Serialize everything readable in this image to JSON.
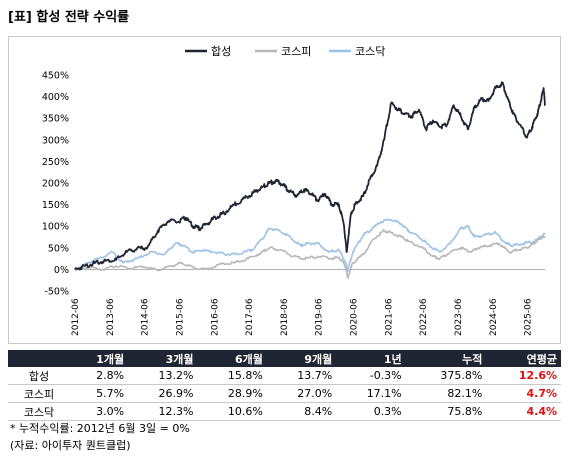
{
  "title": "[표] 합성 전략 수익률",
  "chart_data": {
    "type": "line",
    "title": "",
    "ylim": [
      -50,
      450
    ],
    "yticks": [
      "-50%",
      "0%",
      "50%",
      "100%",
      "150%",
      "200%",
      "250%",
      "300%",
      "350%",
      "400%",
      "450%"
    ],
    "ytick_values": [
      -50,
      0,
      50,
      100,
      150,
      200,
      250,
      300,
      350,
      400,
      450
    ],
    "xticks": [
      "2012-06",
      "2013-06",
      "2014-06",
      "2015-06",
      "2016-06",
      "2017-06",
      "2018-06",
      "2019-06",
      "2020-06",
      "2021-06",
      "2022-06",
      "2023-06",
      "2024-06",
      "2025-06"
    ],
    "x_start": 2012.42,
    "x_end": 2025.92,
    "grid": false,
    "legend_position": "top-center",
    "series": [
      {
        "name": "합성",
        "color": "#1f2533",
        "points": [
          [
            2012.42,
            0
          ],
          [
            2012.7,
            8
          ],
          [
            2013.0,
            15
          ],
          [
            2013.3,
            20
          ],
          [
            2013.6,
            22
          ],
          [
            2013.9,
            40
          ],
          [
            2014.2,
            48
          ],
          [
            2014.5,
            50
          ],
          [
            2014.8,
            90
          ],
          [
            2015.1,
            112
          ],
          [
            2015.4,
            110
          ],
          [
            2015.6,
            120
          ],
          [
            2015.8,
            100
          ],
          [
            2016.0,
            95
          ],
          [
            2016.2,
            105
          ],
          [
            2016.45,
            120
          ],
          [
            2016.7,
            130
          ],
          [
            2017.0,
            150
          ],
          [
            2017.3,
            165
          ],
          [
            2017.6,
            180
          ],
          [
            2017.8,
            190
          ],
          [
            2018.0,
            200
          ],
          [
            2018.2,
            205
          ],
          [
            2018.4,
            195
          ],
          [
            2018.6,
            180
          ],
          [
            2018.8,
            170
          ],
          [
            2019.0,
            185
          ],
          [
            2019.2,
            175
          ],
          [
            2019.4,
            160
          ],
          [
            2019.6,
            175
          ],
          [
            2019.8,
            150
          ],
          [
            2020.0,
            150
          ],
          [
            2020.15,
            100
          ],
          [
            2020.22,
            40
          ],
          [
            2020.35,
            130
          ],
          [
            2020.5,
            155
          ],
          [
            2020.7,
            170
          ],
          [
            2020.9,
            210
          ],
          [
            2021.1,
            240
          ],
          [
            2021.3,
            300
          ],
          [
            2021.5,
            385
          ],
          [
            2021.7,
            370
          ],
          [
            2021.9,
            360
          ],
          [
            2022.1,
            355
          ],
          [
            2022.3,
            370
          ],
          [
            2022.5,
            325
          ],
          [
            2022.7,
            345
          ],
          [
            2022.9,
            330
          ],
          [
            2023.1,
            335
          ],
          [
            2023.3,
            380
          ],
          [
            2023.5,
            355
          ],
          [
            2023.7,
            325
          ],
          [
            2023.9,
            375
          ],
          [
            2024.1,
            395
          ],
          [
            2024.3,
            390
          ],
          [
            2024.5,
            420
          ],
          [
            2024.7,
            430
          ],
          [
            2024.85,
            395
          ],
          [
            2025.0,
            360
          ],
          [
            2025.2,
            335
          ],
          [
            2025.4,
            305
          ],
          [
            2025.55,
            330
          ],
          [
            2025.7,
            360
          ],
          [
            2025.8,
            390
          ],
          [
            2025.88,
            420
          ],
          [
            2025.92,
            380
          ]
        ]
      },
      {
        "name": "코스피",
        "color": "#b8b8b8",
        "points": [
          [
            2012.42,
            0
          ],
          [
            2012.8,
            5
          ],
          [
            2013.2,
            0
          ],
          [
            2013.6,
            8
          ],
          [
            2014.0,
            2
          ],
          [
            2014.4,
            6
          ],
          [
            2014.8,
            -2
          ],
          [
            2015.2,
            8
          ],
          [
            2015.5,
            15
          ],
          [
            2015.8,
            5
          ],
          [
            2016.2,
            0
          ],
          [
            2016.6,
            12
          ],
          [
            2017.0,
            15
          ],
          [
            2017.4,
            25
          ],
          [
            2017.8,
            40
          ],
          [
            2018.0,
            50
          ],
          [
            2018.3,
            45
          ],
          [
            2018.7,
            30
          ],
          [
            2019.0,
            25
          ],
          [
            2019.4,
            30
          ],
          [
            2019.8,
            25
          ],
          [
            2020.0,
            28
          ],
          [
            2020.2,
            5
          ],
          [
            2020.25,
            -20
          ],
          [
            2020.4,
            15
          ],
          [
            2020.7,
            35
          ],
          [
            2021.0,
            70
          ],
          [
            2021.3,
            90
          ],
          [
            2021.5,
            85
          ],
          [
            2021.8,
            75
          ],
          [
            2022.0,
            65
          ],
          [
            2022.4,
            50
          ],
          [
            2022.7,
            30
          ],
          [
            2022.9,
            25
          ],
          [
            2023.2,
            40
          ],
          [
            2023.5,
            50
          ],
          [
            2023.8,
            40
          ],
          [
            2024.0,
            50
          ],
          [
            2024.3,
            55
          ],
          [
            2024.6,
            60
          ],
          [
            2024.9,
            40
          ],
          [
            2025.1,
            45
          ],
          [
            2025.4,
            50
          ],
          [
            2025.6,
            60
          ],
          [
            2025.8,
            75
          ],
          [
            2025.92,
            82
          ]
        ]
      },
      {
        "name": "코스닥",
        "color": "#9ec3e6",
        "points": [
          [
            2012.42,
            0
          ],
          [
            2012.8,
            15
          ],
          [
            2013.1,
            25
          ],
          [
            2013.5,
            40
          ],
          [
            2013.8,
            15
          ],
          [
            2014.2,
            25
          ],
          [
            2014.6,
            40
          ],
          [
            2015.0,
            35
          ],
          [
            2015.3,
            60
          ],
          [
            2015.55,
            55
          ],
          [
            2015.8,
            40
          ],
          [
            2016.1,
            45
          ],
          [
            2016.4,
            40
          ],
          [
            2016.8,
            35
          ],
          [
            2017.1,
            35
          ],
          [
            2017.5,
            45
          ],
          [
            2017.8,
            70
          ],
          [
            2018.0,
            95
          ],
          [
            2018.3,
            90
          ],
          [
            2018.6,
            75
          ],
          [
            2018.9,
            55
          ],
          [
            2019.1,
            60
          ],
          [
            2019.4,
            60
          ],
          [
            2019.7,
            40
          ],
          [
            2020.0,
            45
          ],
          [
            2020.2,
            15
          ],
          [
            2020.25,
            -5
          ],
          [
            2020.4,
            40
          ],
          [
            2020.7,
            80
          ],
          [
            2020.9,
            90
          ],
          [
            2021.2,
            110
          ],
          [
            2021.5,
            115
          ],
          [
            2021.8,
            105
          ],
          [
            2022.0,
            90
          ],
          [
            2022.3,
            75
          ],
          [
            2022.6,
            55
          ],
          [
            2022.9,
            40
          ],
          [
            2023.2,
            60
          ],
          [
            2023.5,
            95
          ],
          [
            2023.7,
            100
          ],
          [
            2023.9,
            75
          ],
          [
            2024.2,
            80
          ],
          [
            2024.5,
            85
          ],
          [
            2024.8,
            60
          ],
          [
            2025.0,
            55
          ],
          [
            2025.3,
            60
          ],
          [
            2025.6,
            65
          ],
          [
            2025.8,
            72
          ],
          [
            2025.92,
            76
          ]
        ]
      }
    ]
  },
  "table": {
    "headers": [
      "",
      "1개월",
      "3개월",
      "6개월",
      "9개월",
      "1년",
      "누적",
      "연평균"
    ],
    "rows": [
      {
        "name": "합성",
        "values": [
          "2.8%",
          "13.2%",
          "15.8%",
          "13.7%",
          "-0.3%",
          "375.8%"
        ],
        "cagr": "12.6%"
      },
      {
        "name": "코스피",
        "values": [
          "5.7%",
          "26.9%",
          "28.9%",
          "27.0%",
          "17.1%",
          "82.1%"
        ],
        "cagr": "4.7%"
      },
      {
        "name": "코스닥",
        "values": [
          "3.0%",
          "12.3%",
          "10.6%",
          "8.4%",
          "0.3%",
          "75.8%"
        ],
        "cagr": "4.4%"
      }
    ],
    "highlight_color": "#e01010",
    "header_bg": "#1f2533"
  },
  "notes": {
    "basis": "* 누적수익률: 2012년 6월 3일 = 0%",
    "source": "(자료: 아이투자 퀀트클럽)"
  }
}
